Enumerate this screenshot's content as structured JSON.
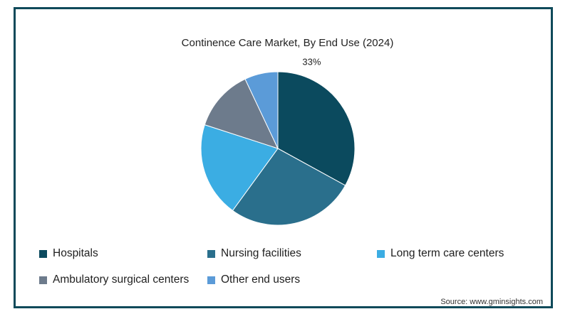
{
  "chart_data": {
    "type": "pie",
    "title": "Continence Care Market, By End Use (2024)",
    "categories": [
      "Hospitals",
      "Nursing facilities",
      "Long term care centers",
      "Ambulatory surgical centers",
      "Other end users"
    ],
    "values": [
      33,
      27,
      20,
      13,
      7
    ],
    "data_labels": [
      "33%",
      "",
      "",
      "",
      ""
    ],
    "colors": [
      "#0b4a5e",
      "#2a6f8c",
      "#3bade3",
      "#6d7b8c",
      "#5b9bd8"
    ],
    "legend_position": "bottom"
  },
  "source": "Source: www.gminsights.com"
}
